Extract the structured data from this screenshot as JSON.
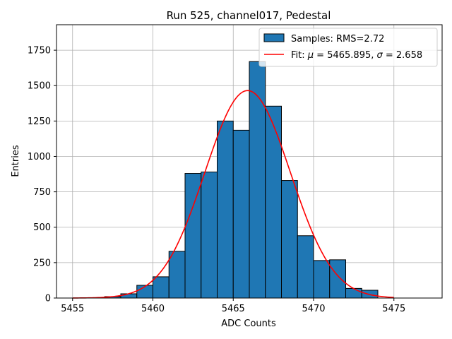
{
  "chart_data": {
    "type": "bar",
    "title": "Run 525, channel017, Pedestal",
    "xlabel": "ADC Counts",
    "ylabel": "Entries",
    "xlim": [
      5454,
      5478
    ],
    "ylim": [
      0,
      1930
    ],
    "x_ticks": [
      5455,
      5460,
      5465,
      5470,
      5475
    ],
    "y_ticks": [
      0,
      250,
      500,
      750,
      1000,
      1250,
      1500,
      1750
    ],
    "grid": true,
    "legend_position": "top-right",
    "colors": {
      "bars": "#1f77b4",
      "bar_edge": "#000000",
      "fit": "#ff0000",
      "grid": "#b0b0b0"
    },
    "histogram": {
      "name": "Samples: RMS=2.72",
      "bin_width": 1,
      "bin_left_edges": [
        5457,
        5458,
        5459,
        5460,
        5461,
        5462,
        5463,
        5464,
        5465,
        5466,
        5467,
        5468,
        5469,
        5470,
        5471,
        5472,
        5473
      ],
      "values": [
        10,
        30,
        90,
        150,
        330,
        880,
        890,
        1250,
        1185,
        1670,
        1355,
        830,
        440,
        265,
        270,
        68,
        55
      ]
    },
    "fit": {
      "name": "Fit: μ = 5465.895, σ = 2.658",
      "mu": 5465.895,
      "sigma": 2.658,
      "peak": 1465,
      "x_range": [
        5455,
        5475
      ]
    }
  }
}
